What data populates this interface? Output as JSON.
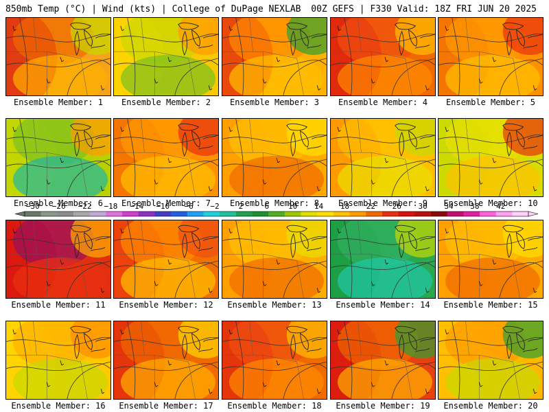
{
  "header": {
    "left": "850mb Temp (°C) | Wind (kts) | College of DuPage NEXLAB",
    "right": "00Z GEFS | F330 Valid: 18Z FRI JUN 20 2025"
  },
  "panels": [
    {
      "label": "Ensemble Member: 1",
      "palette": [
        "#d81010",
        "#f06a00",
        "#ffb000",
        "#c8d800"
      ],
      "base": "#f6a21a"
    },
    {
      "label": "Ensemble Member: 2",
      "palette": [
        "#ffd800",
        "#c8d800",
        "#7cc020",
        "#ff9a00"
      ],
      "base": "#f8c800"
    },
    {
      "label": "Ensemble Member: 3",
      "palette": [
        "#e02010",
        "#ff8c00",
        "#ffc000",
        "#30a030"
      ],
      "base": "#ffb000"
    },
    {
      "label": "Ensemble Member: 4",
      "palette": [
        "#d81010",
        "#f05010",
        "#ff8c00",
        "#ffc000"
      ],
      "base": "#f06a00"
    },
    {
      "label": "Ensemble Member: 5",
      "palette": [
        "#f06a00",
        "#ff9a00",
        "#ffc000",
        "#e83010"
      ],
      "base": "#ff9000"
    },
    {
      "label": "Ensemble Member: 6",
      "palette": [
        "#c8d800",
        "#7cc020",
        "#20b8a0",
        "#ff9a00"
      ],
      "base": "#b8d000"
    },
    {
      "label": "Ensemble Member: 7",
      "palette": [
        "#f06a00",
        "#ff9a00",
        "#ffc000",
        "#e83010"
      ],
      "base": "#ff9000"
    },
    {
      "label": "Ensemble Member: 8",
      "palette": [
        "#ff9a00",
        "#ffc000",
        "#f06a00",
        "#ffe000"
      ],
      "base": "#ffaa00"
    },
    {
      "label": "Ensemble Member: 9",
      "palette": [
        "#ff8c00",
        "#ffc000",
        "#e8e000",
        "#c8d800"
      ],
      "base": "#ffc000"
    },
    {
      "label": "Ensemble Member: 10",
      "palette": [
        "#c8d800",
        "#e8e000",
        "#ffc000",
        "#e83010"
      ],
      "base": "#d8dc00"
    },
    {
      "label": "Ensemble Member: 11",
      "palette": [
        "#d81010",
        "#9a1060",
        "#e83010",
        "#ffb000"
      ],
      "base": "#e03010"
    },
    {
      "label": "Ensemble Member: 12",
      "palette": [
        "#e83010",
        "#ff8c00",
        "#ffc000",
        "#f05010"
      ],
      "base": "#f27000"
    },
    {
      "label": "Ensemble Member: 13",
      "palette": [
        "#ff9a00",
        "#ffc000",
        "#f06a00",
        "#e8e000"
      ],
      "base": "#ffae00"
    },
    {
      "label": "Ensemble Member: 14",
      "palette": [
        "#1a9a40",
        "#30b060",
        "#20c8a8",
        "#c8d800"
      ],
      "base": "#2aa850"
    },
    {
      "label": "Ensemble Member: 15",
      "palette": [
        "#ff9a00",
        "#ffc000",
        "#f06a00",
        "#ffe000"
      ],
      "base": "#ffaa00"
    },
    {
      "label": "Ensemble Member: 16",
      "palette": [
        "#ffd800",
        "#ffb000",
        "#c8d800",
        "#ff8c00"
      ],
      "base": "#ffc800"
    },
    {
      "label": "Ensemble Member: 17",
      "palette": [
        "#e02010",
        "#f06a00",
        "#ffb000",
        "#ffd800"
      ],
      "base": "#f06a00"
    },
    {
      "label": "Ensemble Member: 18",
      "palette": [
        "#e02010",
        "#f05010",
        "#ff8c00",
        "#ffc000"
      ],
      "base": "#f06a00"
    },
    {
      "label": "Ensemble Member: 19",
      "palette": [
        "#d81010",
        "#f06a00",
        "#ffb000",
        "#30a030"
      ],
      "base": "#e84010"
    },
    {
      "label": "Ensemble Member: 20",
      "palette": [
        "#ffc000",
        "#ff9a00",
        "#c8d800",
        "#30a030"
      ],
      "base": "#ffb800"
    }
  ],
  "colorbar": {
    "labels": [
      "−30",
      "−26",
      "−22",
      "−18",
      "−14",
      "−10",
      "−6",
      "−2",
      "2",
      "6",
      "10",
      "14",
      "18",
      "22",
      "26",
      "30",
      "34",
      "38",
      "42"
    ],
    "colors": [
      "#6a7a6a",
      "#8a9a8a",
      "#8c8c8c",
      "#a8a8a8",
      "#c0a8d8",
      "#e070e0",
      "#d040d0",
      "#9030c0",
      "#4040c0",
      "#2060e0",
      "#20a0f0",
      "#20d0e0",
      "#20c0a0",
      "#20a050",
      "#209030",
      "#50b020",
      "#a0c800",
      "#e0e000",
      "#ffe000",
      "#ffc000",
      "#ff9a00",
      "#f06a00",
      "#e83010",
      "#d81010",
      "#b81010",
      "#8a0a0a",
      "#c01070",
      "#e020a0",
      "#ff60e0",
      "#ffa0f0",
      "#ffd0f8"
    ]
  }
}
